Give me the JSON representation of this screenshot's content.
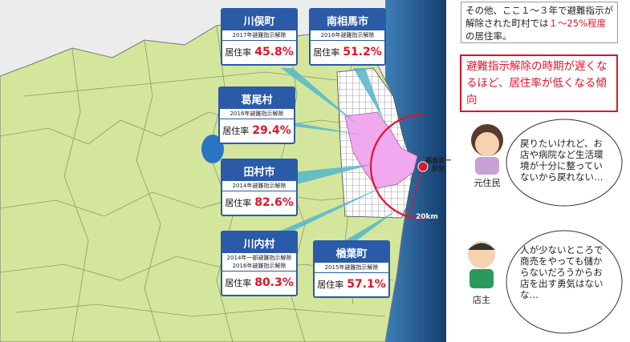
{
  "callouts": [
    {
      "name": "川俣町",
      "status": [
        "2017年避難指示解除"
      ],
      "label": "居住率",
      "rate": "45.8%"
    },
    {
      "name": "南相馬市",
      "status": [
        "2016年避難指示解除"
      ],
      "label": "居住率",
      "rate": "51.2%"
    },
    {
      "name": "葛尾村",
      "status": [
        "2016年避難指示解除"
      ],
      "label": "居住率",
      "rate": "29.4%"
    },
    {
      "name": "田村市",
      "status": [
        "2014年避難指示解除"
      ],
      "label": "居住率",
      "rate": "82.6%"
    },
    {
      "name": "川内村",
      "status": [
        "2014年一部避難指示解除",
        "2016年避難指示解除"
      ],
      "label": "居住率",
      "rate": "80.3%"
    },
    {
      "name": "楢葉町",
      "status": [
        "2015年避難指示解除"
      ],
      "label": "居住率",
      "rate": "57.1%"
    }
  ],
  "map": {
    "plant": [
      "福島第一",
      "原発"
    ],
    "radius": "20km"
  },
  "notes": {
    "other": [
      "その他、ここ１～３年で避難指示が解除された町村では",
      "１～25%程度",
      "の居住率。"
    ],
    "trend": "避難指示解除の時期が遅くなるほど、居住率が低くなる傾向"
  },
  "voices": [
    {
      "role": "元住民",
      "speech": "戻りたいけれど、お店や病院など生活環境が十分に整っていないから戻れない…"
    },
    {
      "role": "店主",
      "speech": "人が少ないところで商売をやっても儲からないだろうからお店を出す勇気はないな…"
    }
  ]
}
